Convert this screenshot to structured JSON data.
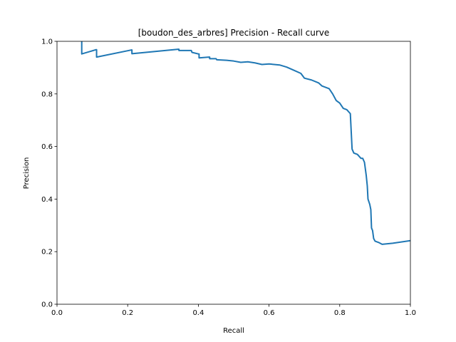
{
  "chart_data": {
    "type": "line",
    "title": "[boudon_des_arbres] Precision - Recall curve",
    "xlabel": "Recall",
    "ylabel": "Precision",
    "xlim": [
      0.0,
      1.0
    ],
    "ylim": [
      0.0,
      1.0
    ],
    "xticks": [
      "0.0",
      "0.2",
      "0.4",
      "0.6",
      "0.8",
      "1.0"
    ],
    "yticks": [
      "0.0",
      "0.2",
      "0.4",
      "0.6",
      "0.8",
      "1.0"
    ],
    "grid": false,
    "legend": "none",
    "series": [
      {
        "color": "#1f77b4",
        "x": [
          0.07,
          0.07,
          0.07,
          0.11,
          0.112,
          0.112,
          0.21,
          0.212,
          0.212,
          0.343,
          0.345,
          0.345,
          0.38,
          0.382,
          0.382,
          0.4,
          0.402,
          0.402,
          0.43,
          0.432,
          0.432,
          0.45,
          0.452,
          0.452,
          0.48,
          0.5,
          0.52,
          0.54,
          0.56,
          0.58,
          0.6,
          0.63,
          0.65,
          0.67,
          0.69,
          0.7,
          0.72,
          0.74,
          0.75,
          0.77,
          0.78,
          0.79,
          0.8,
          0.81,
          0.82,
          0.83,
          0.835,
          0.84,
          0.85,
          0.86,
          0.865,
          0.87,
          0.875,
          0.878,
          0.88,
          0.885,
          0.888,
          0.89,
          0.893,
          0.896,
          0.9,
          0.91,
          0.92,
          0.95,
          1.0
        ],
        "y": [
          1.0,
          1.0,
          0.952,
          0.968,
          0.968,
          0.94,
          0.967,
          0.967,
          0.953,
          0.97,
          0.97,
          0.965,
          0.965,
          0.958,
          0.958,
          0.952,
          0.952,
          0.937,
          0.94,
          0.94,
          0.934,
          0.934,
          0.93,
          0.93,
          0.928,
          0.925,
          0.92,
          0.922,
          0.918,
          0.912,
          0.914,
          0.91,
          0.902,
          0.89,
          0.878,
          0.86,
          0.853,
          0.842,
          0.83,
          0.82,
          0.8,
          0.775,
          0.765,
          0.745,
          0.74,
          0.725,
          0.59,
          0.575,
          0.57,
          0.555,
          0.555,
          0.54,
          0.49,
          0.45,
          0.4,
          0.38,
          0.36,
          0.29,
          0.28,
          0.25,
          0.24,
          0.235,
          0.228,
          0.232,
          0.242
        ]
      }
    ]
  }
}
